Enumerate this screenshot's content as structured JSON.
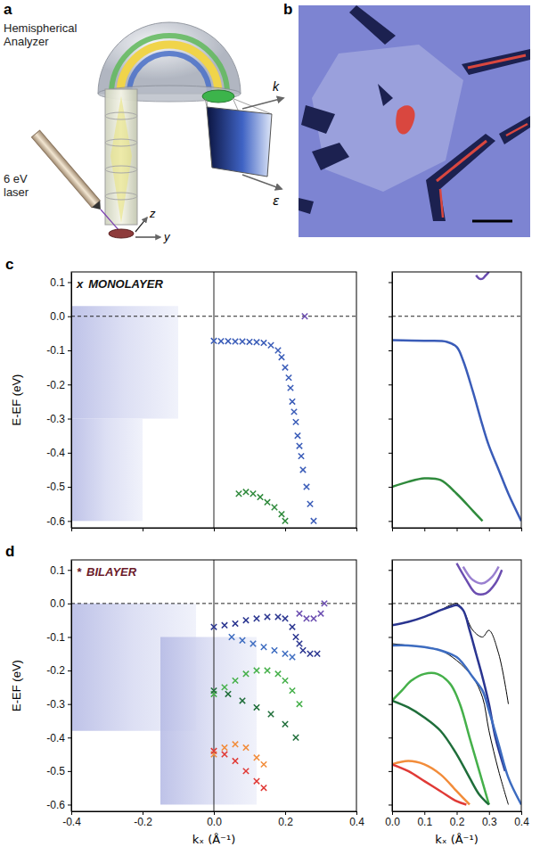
{
  "panels": [
    {
      "label": "a",
      "analyzer": "Hemispherical Analyzer",
      "laser": "6 eV laser",
      "axes": [
        "k",
        "ε",
        "z",
        "y"
      ]
    },
    {
      "label": "b"
    }
  ],
  "chart_data": [
    {
      "type": "scatter",
      "title": "MONOLAYER",
      "annotations": [
        {
          "text": "c",
          "kind": "panel"
        },
        {
          "text": "x",
          "kind": "symbol"
        },
        {
          "y": 0,
          "line_style": "dashed"
        },
        {
          "x": 0,
          "line_style": "solid"
        }
      ],
      "y_label": "E-EF (eV)",
      "xlim": [
        -0.4,
        0.4
      ],
      "ylim": [
        -0.62,
        0.13
      ],
      "xticks": [
        -0.4,
        -0.2,
        0,
        0.2,
        0.4
      ],
      "yticks": [
        0.1,
        {
          "value": 0,
          "label": "0.0"
        },
        -0.1,
        -0.2,
        -0.3,
        -0.4,
        -0.5,
        -0.6
      ],
      "tick_labels": "y",
      "image_regions": [
        {
          "x": [
            -0.4,
            -0.1
          ],
          "y": [
            -0.3,
            0.03
          ]
        },
        {
          "x": [
            -0.4,
            -0.2
          ],
          "y": [
            -0.6,
            -0.3
          ]
        }
      ],
      "series": [
        {
          "color": "#3a5cb8",
          "marker": "x",
          "x": [
            0,
            0.02,
            0.04,
            0.06,
            0.08,
            0.1,
            0.12,
            0.14,
            0.16,
            0.18,
            0.19,
            0.2,
            0.21,
            0.215,
            0.22,
            0.225,
            0.23,
            0.235,
            0.24,
            0.245,
            0.25,
            0.26,
            0.27,
            0.28
          ],
          "values": [
            -0.072,
            -0.073,
            -0.073,
            -0.074,
            -0.074,
            -0.075,
            -0.076,
            -0.078,
            -0.085,
            -0.1,
            -0.12,
            -0.15,
            -0.18,
            -0.21,
            -0.25,
            -0.28,
            -0.31,
            -0.35,
            -0.38,
            -0.41,
            -0.45,
            -0.5,
            -0.55,
            -0.6
          ]
        },
        {
          "color": "#6b4db0",
          "marker": "x",
          "x": [
            0.255
          ],
          "values": [
            0
          ]
        },
        {
          "color": "#2f8a3c",
          "marker": "x",
          "x": [
            0.07,
            0.09,
            0.11,
            0.13,
            0.15,
            0.17,
            0.19,
            0.2
          ],
          "values": [
            -0.52,
            -0.515,
            -0.52,
            -0.53,
            -0.545,
            -0.56,
            -0.58,
            -0.6
          ]
        }
      ]
    },
    {
      "type": "line",
      "annotations": [
        {
          "y": 0,
          "line_style": "dashed"
        }
      ],
      "xlim": [
        0,
        0.4
      ],
      "ylim": [
        -0.62,
        0.13
      ],
      "xticks": [
        0,
        0.1,
        0.2,
        0.3,
        0.4
      ],
      "yticks": [
        0.1,
        0,
        -0.1,
        -0.2,
        -0.3,
        -0.4,
        -0.5,
        -0.6
      ],
      "tick_labels": false,
      "series": [
        {
          "color": "#3a5cb8",
          "x": [
            0,
            0.1,
            0.17,
            0.2,
            0.22,
            0.25,
            0.28,
            0.3,
            0.33,
            0.36,
            0.4
          ],
          "values": [
            -0.07,
            -0.072,
            -0.075,
            -0.09,
            -0.13,
            -0.22,
            -0.32,
            -0.38,
            -0.45,
            -0.52,
            -0.6
          ]
        },
        {
          "color": "#2f8a3c",
          "x": [
            0,
            0.05,
            0.1,
            0.15,
            0.2,
            0.25,
            0.28
          ],
          "values": [
            -0.5,
            -0.485,
            -0.475,
            -0.48,
            -0.52,
            -0.57,
            -0.6
          ]
        },
        {
          "color": "#6b4db0",
          "x": [
            0.26,
            0.27,
            0.28,
            0.29,
            0.3
          ],
          "values": [
            0.12,
            0.11,
            0.11,
            0.12,
            0.13
          ]
        }
      ]
    },
    {
      "type": "scatter",
      "title": "BILAYER",
      "annotations": [
        {
          "text": "d",
          "kind": "panel"
        },
        {
          "text": "*",
          "kind": "symbol"
        },
        {
          "y": 0,
          "line_style": "dashed"
        },
        {
          "x": 0,
          "line_style": "solid"
        }
      ],
      "x_label": "kₓ (Å⁻¹)",
      "y_label": "E-EF (eV)",
      "xlim": [
        -0.4,
        0.4
      ],
      "ylim": [
        -0.62,
        0.13
      ],
      "xticks": [
        -0.4,
        -0.2,
        {
          "value": 0,
          "label": "0.0"
        },
        0.2,
        0.4
      ],
      "yticks": [
        0.1,
        {
          "value": 0,
          "label": "0.0"
        },
        -0.1,
        -0.2,
        -0.3,
        -0.4,
        -0.5,
        -0.6
      ],
      "image_regions": [
        {
          "x": [
            -0.4,
            -0.05
          ],
          "y": [
            -0.38,
            0.0
          ]
        },
        {
          "x": [
            -0.15,
            0.12
          ],
          "y": [
            -0.6,
            -0.1
          ]
        }
      ],
      "series": [
        {
          "color": "#2a3590",
          "marker": "x",
          "x": [
            0,
            0.03,
            0.06,
            0.09,
            0.12,
            0.15,
            0.18,
            0.2,
            0.22,
            0.23,
            0.24,
            0.25,
            0.27,
            0.29
          ],
          "values": [
            -0.07,
            -0.065,
            -0.06,
            -0.05,
            -0.045,
            -0.04,
            -0.04,
            -0.045,
            -0.07,
            -0.1,
            -0.12,
            -0.14,
            -0.15,
            -0.15
          ]
        },
        {
          "color": "#3d6cc0",
          "marker": "x",
          "x": [
            0.05,
            0.08,
            0.11,
            0.14,
            0.17,
            0.2,
            0.22
          ],
          "values": [
            -0.1,
            -0.11,
            -0.12,
            -0.13,
            -0.14,
            -0.15,
            -0.16
          ]
        },
        {
          "color": "#6b4db0",
          "marker": "x",
          "x": [
            0.24,
            0.26,
            0.28,
            0.3,
            0.31
          ],
          "values": [
            -0.03,
            -0.045,
            -0.045,
            -0.03,
            0
          ]
        },
        {
          "color": "#45b04a",
          "marker": "x",
          "x": [
            0,
            0.03,
            0.06,
            0.09,
            0.12,
            0.15,
            0.18,
            0.2,
            0.22,
            0.24
          ],
          "values": [
            -0.27,
            -0.25,
            -0.23,
            -0.21,
            -0.2,
            -0.2,
            -0.21,
            -0.23,
            -0.26,
            -0.3
          ]
        },
        {
          "color": "#1f6e3a",
          "marker": "x",
          "x": [
            0,
            0.04,
            0.08,
            0.12,
            0.16,
            0.2,
            0.23
          ],
          "values": [
            -0.26,
            -0.27,
            -0.29,
            -0.31,
            -0.33,
            -0.36,
            -0.4
          ]
        },
        {
          "color": "#f28c3a",
          "marker": "x",
          "x": [
            0,
            0.03,
            0.06,
            0.09,
            0.12,
            0.14
          ],
          "values": [
            -0.45,
            -0.43,
            -0.42,
            -0.43,
            -0.46,
            -0.48
          ]
        },
        {
          "color": "#e03a36",
          "marker": "x",
          "x": [
            0,
            0.03,
            0.06,
            0.09,
            0.12,
            0.14
          ],
          "values": [
            -0.44,
            -0.45,
            -0.47,
            -0.5,
            -0.53,
            -0.55
          ]
        }
      ]
    },
    {
      "type": "line",
      "annotations": [
        {
          "y": 0,
          "line_style": "dashed"
        }
      ],
      "x_label": "kₓ (Å⁻¹)",
      "xlim": [
        0,
        0.4
      ],
      "ylim": [
        -0.62,
        0.13
      ],
      "xticks": [
        {
          "value": 0,
          "label": "0.0"
        },
        0.1,
        0.2,
        0.3,
        0.4
      ],
      "yticks": [
        0.1,
        0,
        -0.1,
        -0.2,
        -0.3,
        -0.4,
        -0.5,
        -0.6
      ],
      "tick_labels": "x",
      "series": [
        {
          "color": "#6b4db0",
          "x": [
            0.2,
            0.23,
            0.26,
            0.29,
            0.32,
            0.34
          ],
          "values": [
            0.12,
            0.07,
            0.03,
            0.03,
            0.06,
            0.1
          ]
        },
        {
          "color": "#9a80d0",
          "x": [
            0.22,
            0.25,
            0.28,
            0.31,
            0.33
          ],
          "values": [
            0.11,
            0.07,
            0.06,
            0.08,
            0.11
          ]
        },
        {
          "color": "#000000",
          "x": [
            0,
            0.05,
            0.1,
            0.15,
            0.18,
            0.2,
            0.22,
            0.25,
            0.28,
            0.3,
            0.33,
            0.36
          ],
          "values": [
            -0.065,
            -0.055,
            -0.04,
            -0.02,
            -0.005,
            0,
            -0.02,
            -0.08,
            -0.1,
            -0.08,
            -0.15,
            -0.3
          ]
        },
        {
          "color": "#000000",
          "x": [
            0,
            0.05,
            0.1,
            0.15,
            0.2,
            0.25,
            0.28,
            0.3,
            0.33,
            0.36
          ],
          "values": [
            -0.12,
            -0.125,
            -0.13,
            -0.14,
            -0.17,
            -0.22,
            -0.28,
            -0.38,
            -0.5,
            -0.6
          ]
        },
        {
          "color": "#2a3590",
          "x": [
            0,
            0.05,
            0.1,
            0.15,
            0.18,
            0.2,
            0.22,
            0.24,
            0.26,
            0.28,
            0.3,
            0.32,
            0.35
          ],
          "values": [
            -0.065,
            -0.055,
            -0.04,
            -0.02,
            -0.01,
            -0.005,
            -0.02,
            -0.08,
            -0.15,
            -0.22,
            -0.3,
            -0.4,
            -0.5
          ]
        },
        {
          "color": "#3d6cc0",
          "x": [
            0,
            0.05,
            0.1,
            0.15,
            0.2,
            0.22,
            0.25,
            0.28,
            0.3,
            0.33,
            0.36,
            0.4
          ],
          "values": [
            -0.125,
            -0.125,
            -0.13,
            -0.14,
            -0.16,
            -0.18,
            -0.22,
            -0.26,
            -0.32,
            -0.42,
            -0.52,
            -0.6
          ]
        },
        {
          "color": "#45b04a",
          "x": [
            0,
            0.03,
            0.06,
            0.1,
            0.14,
            0.18,
            0.21,
            0.24,
            0.27,
            0.3
          ],
          "values": [
            -0.29,
            -0.26,
            -0.23,
            -0.21,
            -0.21,
            -0.24,
            -0.3,
            -0.4,
            -0.5,
            -0.6
          ]
        },
        {
          "color": "#1f6e3a",
          "x": [
            0,
            0.05,
            0.1,
            0.15,
            0.2,
            0.24,
            0.27,
            0.3
          ],
          "values": [
            -0.29,
            -0.31,
            -0.34,
            -0.38,
            -0.45,
            -0.52,
            -0.57,
            -0.6
          ]
        },
        {
          "color": "#f28c3a",
          "x": [
            0,
            0.05,
            0.1,
            0.15,
            0.2,
            0.24
          ],
          "values": [
            -0.48,
            -0.47,
            -0.48,
            -0.51,
            -0.56,
            -0.6
          ]
        },
        {
          "color": "#e03a36",
          "x": [
            0,
            0.05,
            0.1,
            0.15,
            0.2,
            0.23
          ],
          "values": [
            -0.48,
            -0.5,
            -0.53,
            -0.56,
            -0.59,
            -0.6
          ]
        }
      ]
    }
  ]
}
